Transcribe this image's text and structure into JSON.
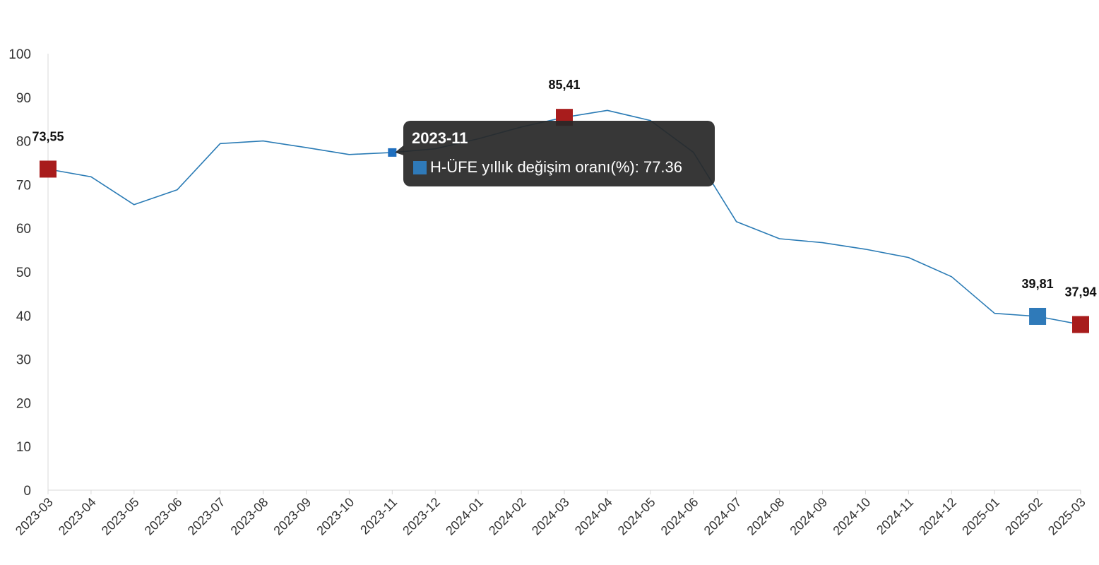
{
  "chart_data": {
    "type": "line",
    "categories": [
      "2023-03",
      "2023-04",
      "2023-05",
      "2023-06",
      "2023-07",
      "2023-08",
      "2023-09",
      "2023-10",
      "2023-11",
      "2023-12",
      "2024-01",
      "2024-02",
      "2024-03",
      "2024-04",
      "2024-05",
      "2024-06",
      "2024-07",
      "2024-08",
      "2024-09",
      "2024-10",
      "2024-11",
      "2024-12",
      "2025-01",
      "2025-02",
      "2025-03"
    ],
    "series": [
      {
        "name": "H-ÜFE yıllık değişim oranı(%)",
        "values": [
          73.55,
          71.8,
          65.4,
          68.8,
          79.4,
          80.0,
          78.5,
          76.9,
          77.36,
          78.2,
          80.5,
          83.2,
          85.41,
          87.0,
          84.7,
          77.4,
          61.5,
          57.6,
          56.7,
          55.2,
          53.3,
          48.9,
          40.5,
          39.81,
          37.94
        ],
        "color": "#2a7bb5"
      }
    ],
    "ylim": [
      0,
      100
    ],
    "yticks": [
      0,
      10,
      20,
      30,
      40,
      50,
      60,
      70,
      80,
      90,
      100
    ],
    "grid": false,
    "highlights": [
      {
        "index": 0,
        "label": "73,55",
        "color": "#a81c1c"
      },
      {
        "index": 12,
        "label": "85,41",
        "color": "#a81c1c"
      },
      {
        "index": 23,
        "label": "39,81",
        "color": "#2f7ab9"
      },
      {
        "index": 24,
        "label": "37,94",
        "color": "#a81c1c"
      }
    ],
    "tooltip": {
      "title": "2023-11",
      "series_name": "H-ÜFE yıllık değişim oranı(%)",
      "value_text": "77.36",
      "swatch_color": "#2f7ab9",
      "index": 8
    }
  }
}
